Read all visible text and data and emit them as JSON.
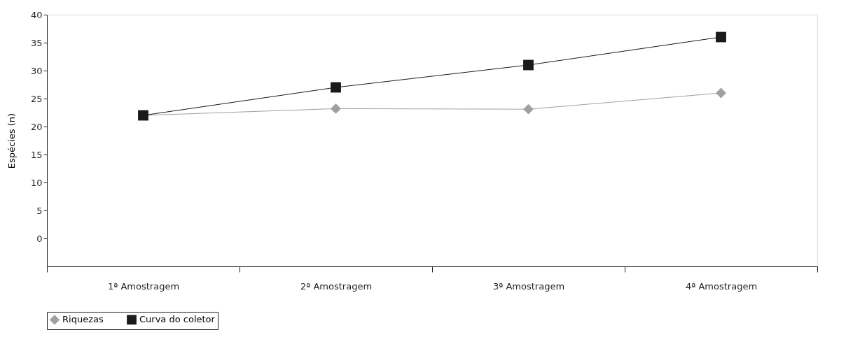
{
  "chart_data": {
    "type": "line",
    "ylabel": "Espécies (n)",
    "categories": [
      "1ª Amostragem",
      "2ª Amostragem",
      "3ª Amostragem",
      "4ª Amostragem"
    ],
    "series": [
      {
        "name": "Riquezas",
        "color": "#a0a0a0",
        "marker": "diamond",
        "values": [
          22,
          23.2,
          23.1,
          26
        ]
      },
      {
        "name": "Curva do coletor",
        "color": "#1a1a1a",
        "marker": "square",
        "values": [
          22,
          27,
          31,
          36
        ]
      }
    ],
    "ylim": [
      -5,
      40
    ],
    "yticks": [
      0,
      5,
      10,
      15,
      20,
      25,
      30,
      35,
      40
    ],
    "grid": false,
    "legend": "bottom",
    "line_style": "solid"
  }
}
